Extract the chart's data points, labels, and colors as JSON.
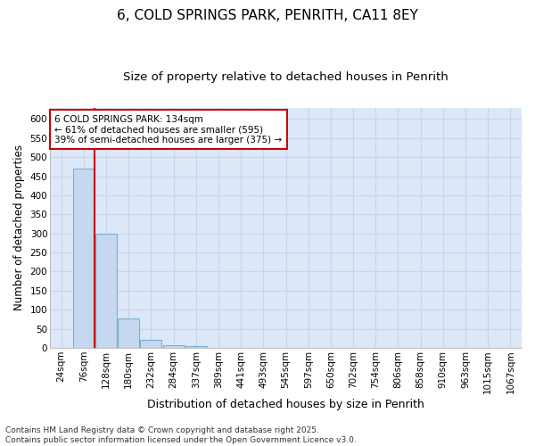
{
  "title1": "6, COLD SPRINGS PARK, PENRITH, CA11 8EY",
  "title2": "Size of property relative to detached houses in Penrith",
  "xlabel": "Distribution of detached houses by size in Penrith",
  "ylabel": "Number of detached properties",
  "bar_labels": [
    "24sqm",
    "76sqm",
    "128sqm",
    "180sqm",
    "232sqm",
    "284sqm",
    "337sqm",
    "389sqm",
    "441sqm",
    "493sqm",
    "545sqm",
    "597sqm",
    "650sqm",
    "702sqm",
    "754sqm",
    "806sqm",
    "858sqm",
    "910sqm",
    "963sqm",
    "1015sqm",
    "1067sqm"
  ],
  "bar_values": [
    0,
    470,
    300,
    78,
    22,
    8,
    5,
    1,
    0,
    0,
    0,
    0,
    0,
    0,
    0,
    0,
    0,
    0,
    0,
    0,
    0
  ],
  "bar_color": "#c5d8f0",
  "bar_edge_color": "#7aafd4",
  "grid_color": "#c8d4e8",
  "plot_bg_color": "#dce8f8",
  "fig_bg_color": "#ffffff",
  "annotation_text": "6 COLD SPRINGS PARK: 134sqm\n← 61% of detached houses are smaller (595)\n39% of semi-detached houses are larger (375) →",
  "annotation_box_color": "#ffffff",
  "annotation_border_color": "#cc0000",
  "vline_x": 1.5,
  "vline_color": "#cc0000",
  "ylim": [
    0,
    630
  ],
  "yticks": [
    0,
    50,
    100,
    150,
    200,
    250,
    300,
    350,
    400,
    450,
    500,
    550,
    600
  ],
  "footer": "Contains HM Land Registry data © Crown copyright and database right 2025.\nContains public sector information licensed under the Open Government Licence v3.0.",
  "title1_fontsize": 11,
  "title2_fontsize": 9.5,
  "xlabel_fontsize": 9,
  "ylabel_fontsize": 8.5,
  "tick_fontsize": 7.5,
  "annotation_fontsize": 7.5,
  "footer_fontsize": 6.5
}
